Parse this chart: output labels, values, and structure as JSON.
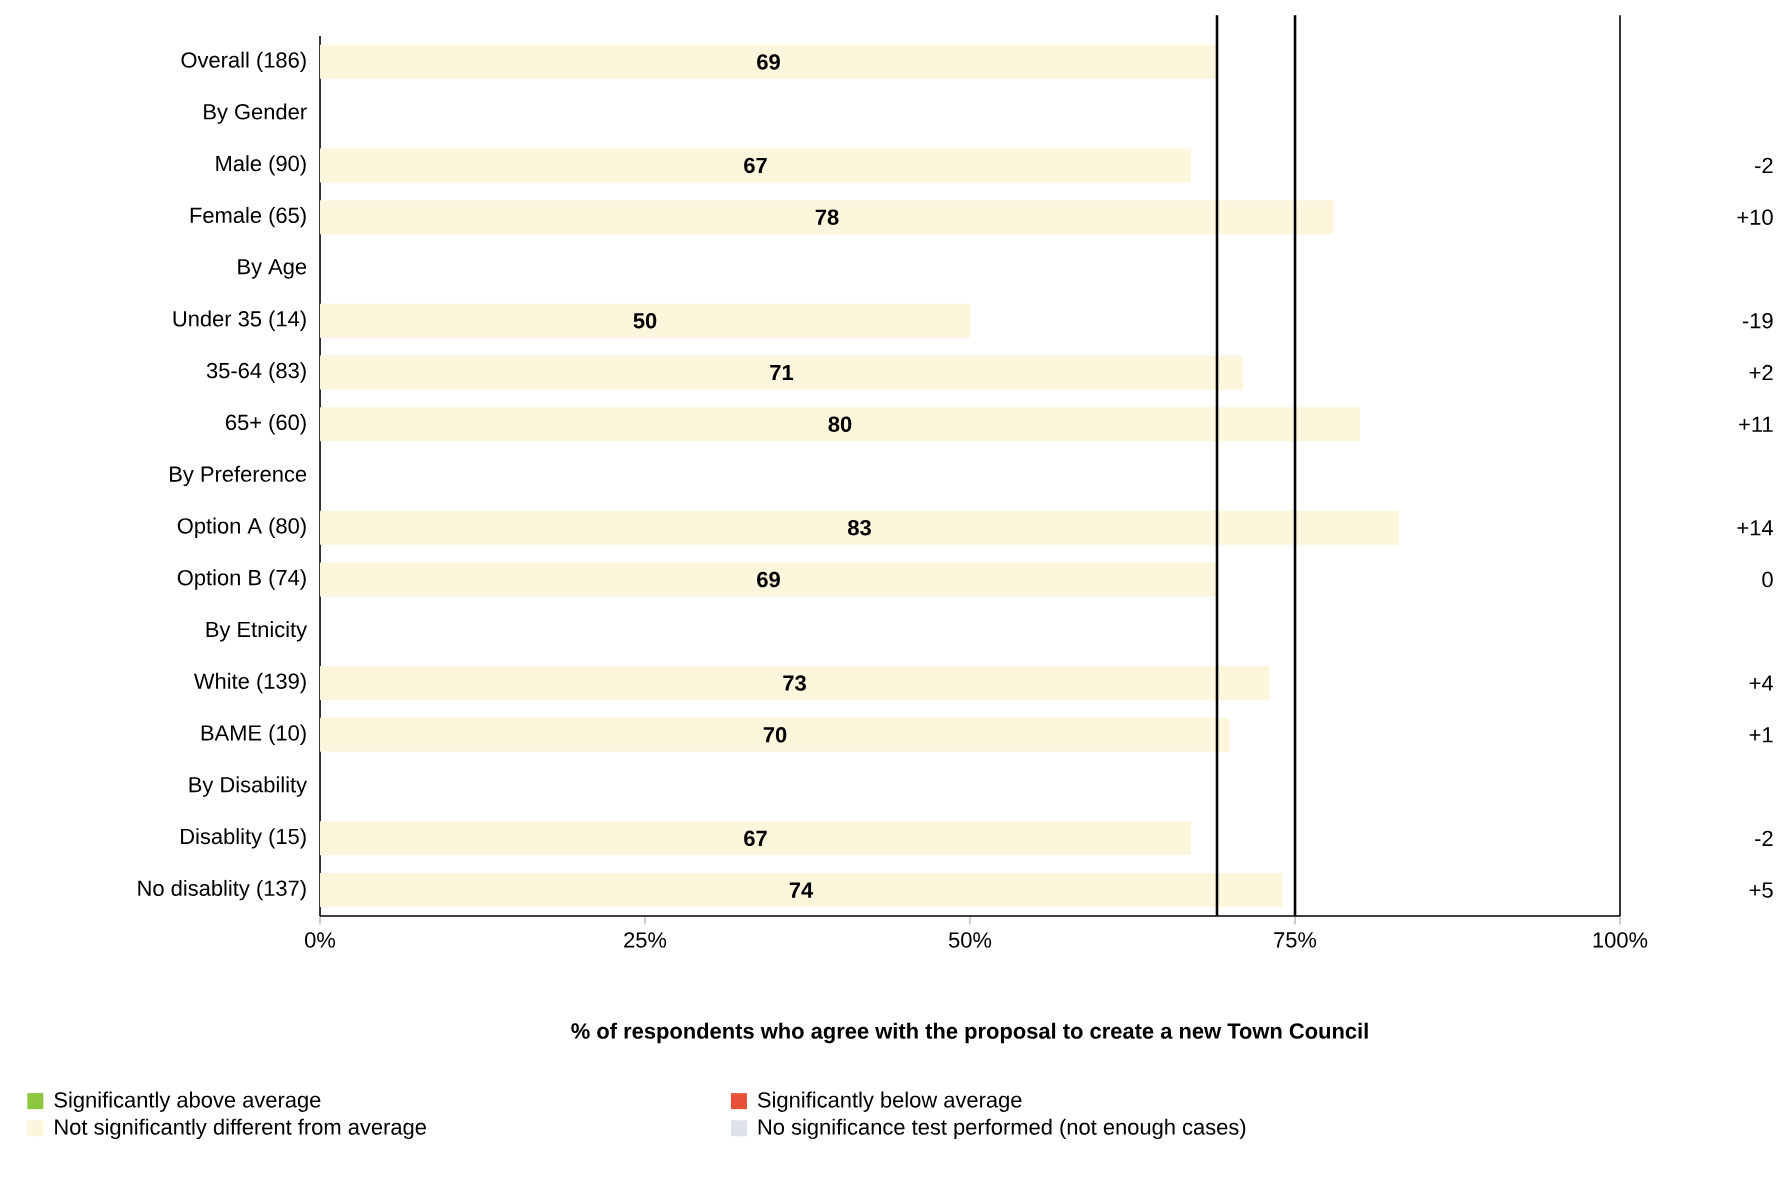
{
  "chart_data": {
    "type": "bar",
    "orientation": "horizontal",
    "xlabel": "% of respondents who agree with the proposal to create a new Town Council",
    "categories": [
      "Overall (186)",
      "By Gender",
      "Male (90)",
      "Female (65)",
      "By Age",
      "Under 35 (14)",
      "35-64 (83)",
      "65+ (60)",
      "By Preference",
      "Option A (80)",
      "Option B (74)",
      "By Etnicity",
      "White (139)",
      "BAME (10)",
      "By Disability",
      "Disablity (15)",
      "No disablity (137)"
    ],
    "series": [
      {
        "name": "Significantly above average",
        "color": "#8dc63f",
        "values": [
          null,
          null,
          null,
          null,
          null,
          null,
          null,
          null,
          null,
          null,
          null,
          null,
          null,
          null,
          null,
          null,
          null
        ]
      },
      {
        "name": "Significantly below average",
        "color": "#e8503a",
        "values": [
          null,
          null,
          null,
          null,
          null,
          null,
          null,
          null,
          null,
          null,
          null,
          null,
          null,
          null,
          null,
          null,
          null
        ]
      },
      {
        "name": "Not significantly different from average",
        "color": "#fbf6dc",
        "values": [
          69,
          null,
          67,
          78,
          null,
          50,
          71,
          80,
          null,
          83,
          69,
          null,
          73,
          70,
          null,
          67,
          74
        ]
      },
      {
        "name": "No significance test performed (not enough cases)",
        "color": "#dde2ea",
        "values": [
          null,
          null,
          null,
          null,
          null,
          null,
          null,
          null,
          null,
          null,
          null,
          null,
          null,
          null,
          null,
          null,
          null
        ]
      }
    ],
    "data_labels": true,
    "xlim": [
      0,
      100
    ],
    "xticks": [
      {
        "value": 0,
        "label": "0%"
      },
      {
        "value": 25,
        "label": "25%"
      },
      {
        "value": 50,
        "label": "50%"
      },
      {
        "value": 75,
        "label": "75%"
      },
      {
        "value": 100,
        "label": "100%"
      }
    ],
    "ref_lines": [
      {
        "axis": "x",
        "value": 69,
        "color": "#000000"
      },
      {
        "axis": "x",
        "value": 75,
        "color": "#000000"
      }
    ],
    "annotations": [
      "-2",
      "+10",
      "-19",
      "+2",
      "+11",
      "+14",
      "0",
      "+4",
      "+1",
      "-2",
      "+5"
    ],
    "legend": "bottom"
  }
}
